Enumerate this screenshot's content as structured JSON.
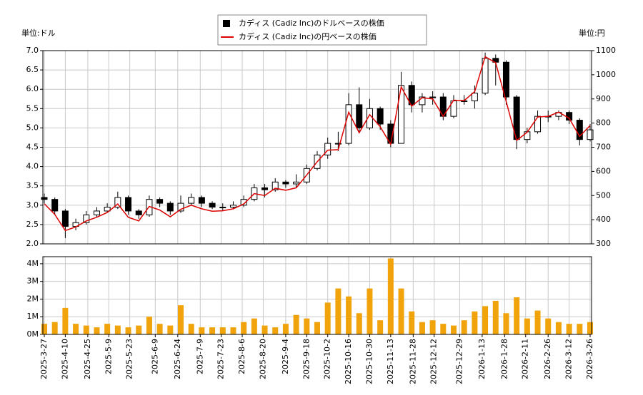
{
  "chart_data": [
    {
      "type": "candlestick",
      "y_unit": "単位:ドル",
      "y2_unit": "単位:円",
      "x": [
        "2025-03-27",
        "2025-04-03",
        "2025-04-10",
        "2025-04-17",
        "2025-04-24",
        "2025-05-01",
        "2025-05-08",
        "2025-05-15",
        "2025-05-22",
        "2025-05-29",
        "2025-06-05",
        "2025-06-12",
        "2025-06-19",
        "2025-06-26",
        "2025-07-03",
        "2025-07-10",
        "2025-07-17",
        "2025-07-24",
        "2025-07-31",
        "2025-08-07",
        "2025-08-14",
        "2025-08-21",
        "2025-08-28",
        "2025-09-04",
        "2025-09-11",
        "2025-09-18",
        "2025-09-25",
        "2025-10-02",
        "2025-10-09",
        "2025-10-16",
        "2025-10-23",
        "2025-10-30",
        "2025-11-06",
        "2025-11-13",
        "2025-11-20",
        "2025-11-27",
        "2025-12-04",
        "2025-12-11",
        "2025-12-18",
        "2025-12-25",
        "2026-01-01",
        "2026-01-08",
        "2026-01-15",
        "2026-01-22",
        "2026-01-29",
        "2026-02-05",
        "2026-02-12",
        "2026-02-19",
        "2026-02-26",
        "2026-03-05",
        "2026-03-12",
        "2026-03-19",
        "2026-03-26"
      ],
      "xlim": [
        "2025-03-27",
        "2026-03-26"
      ],
      "ylim": [
        2,
        7
      ],
      "yticks": [
        {
          "value": 2,
          "label": "2.0"
        },
        {
          "value": 2.5,
          "label": "2.5"
        },
        {
          "value": 3,
          "label": "3.0"
        },
        {
          "value": 3.5,
          "label": "3.5"
        },
        {
          "value": 4,
          "label": "4.0"
        },
        {
          "value": 4.5,
          "label": "4.5"
        },
        {
          "value": 5,
          "label": "5.0"
        },
        {
          "value": 5.5,
          "label": "5.5"
        },
        {
          "value": 6,
          "label": "6.0"
        },
        {
          "value": 6.5,
          "label": "6.5"
        },
        {
          "value": 7,
          "label": "7.0"
        }
      ],
      "y2lim": [
        300,
        1100
      ],
      "y2ticks": [
        300,
        400,
        500,
        600,
        700,
        800,
        900,
        1000,
        1100
      ],
      "grid": true,
      "legend": "top",
      "series": [
        {
          "name": "カディス (Cadiz Inc)のドルベースの株価",
          "color": "#000000",
          "open": [
            3.2,
            3.15,
            2.85,
            2.45,
            2.55,
            2.75,
            2.85,
            2.95,
            3.2,
            2.85,
            2.75,
            3.15,
            3.05,
            2.85,
            3.05,
            3.2,
            3.05,
            2.95,
            2.95,
            3.0,
            3.15,
            3.45,
            3.4,
            3.6,
            3.55,
            3.6,
            3.95,
            4.3,
            4.6,
            4.6,
            5.6,
            5.0,
            5.5,
            5.1,
            4.6,
            6.1,
            5.6,
            5.8,
            5.8,
            5.3,
            5.7,
            5.7,
            5.9,
            6.8,
            6.7,
            5.8,
            4.7,
            4.9,
            5.3,
            5.3,
            5.4,
            5.2,
            4.7
          ],
          "high": [
            3.3,
            3.2,
            2.9,
            2.65,
            2.85,
            2.95,
            3.05,
            3.35,
            3.25,
            2.9,
            3.25,
            3.2,
            3.1,
            3.25,
            3.3,
            3.25,
            3.1,
            3.05,
            3.1,
            3.25,
            3.55,
            3.55,
            3.7,
            3.65,
            3.8,
            4.05,
            4.4,
            4.75,
            4.9,
            5.9,
            6.05,
            5.75,
            5.55,
            5.2,
            6.45,
            6.2,
            5.9,
            5.95,
            5.9,
            5.85,
            5.85,
            6.1,
            6.95,
            6.9,
            6.75,
            5.85,
            5.0,
            5.45,
            5.45,
            5.45,
            5.45,
            5.25,
            5.1
          ],
          "low": [
            3.05,
            2.75,
            2.15,
            2.35,
            2.5,
            2.7,
            2.8,
            2.9,
            2.75,
            2.65,
            2.7,
            2.95,
            2.75,
            2.8,
            3.0,
            2.95,
            2.9,
            2.85,
            2.9,
            2.95,
            3.1,
            3.2,
            3.35,
            3.45,
            3.45,
            3.55,
            3.9,
            4.2,
            4.4,
            4.55,
            4.9,
            4.95,
            4.95,
            4.5,
            4.6,
            5.4,
            5.4,
            5.6,
            5.2,
            5.25,
            5.6,
            5.5,
            5.85,
            6.1,
            5.6,
            4.45,
            4.6,
            4.85,
            5.15,
            5.2,
            5.1,
            4.55,
            4.65
          ],
          "close": [
            3.15,
            2.85,
            2.45,
            2.55,
            2.75,
            2.85,
            2.95,
            3.2,
            2.85,
            2.75,
            3.15,
            3.05,
            2.85,
            3.05,
            3.2,
            3.05,
            2.95,
            2.95,
            3.0,
            3.15,
            3.45,
            3.4,
            3.6,
            3.55,
            3.6,
            3.95,
            4.3,
            4.6,
            4.6,
            5.6,
            5.0,
            5.5,
            5.1,
            4.6,
            6.1,
            5.6,
            5.8,
            5.8,
            5.3,
            5.7,
            5.7,
            5.9,
            6.8,
            6.7,
            5.8,
            4.7,
            4.9,
            5.3,
            5.3,
            5.4,
            5.2,
            4.7,
            4.95
          ]
        },
        {
          "name": "カディス (Cadiz Inc)の円ベースの株価",
          "color": "#dd0000",
          "axis": "y2",
          "values": [
            466,
            422,
            355,
            370,
            395,
            410,
            430,
            465,
            410,
            395,
            455,
            440,
            412,
            443,
            460,
            445,
            435,
            437,
            445,
            465,
            508,
            500,
            530,
            522,
            532,
            585,
            640,
            688,
            690,
            845,
            760,
            835,
            785,
            712,
            950,
            870,
            905,
            900,
            828,
            895,
            893,
            930,
            1075,
            1050,
            890,
            728,
            762,
            825,
            828,
            845,
            820,
            745,
            790
          ]
        }
      ]
    },
    {
      "type": "bar",
      "x": [
        "2025-03-27",
        "2025-04-03",
        "2025-04-10",
        "2025-04-17",
        "2025-04-24",
        "2025-05-01",
        "2025-05-08",
        "2025-05-15",
        "2025-05-22",
        "2025-05-29",
        "2025-06-05",
        "2025-06-12",
        "2025-06-19",
        "2025-06-26",
        "2025-07-03",
        "2025-07-10",
        "2025-07-17",
        "2025-07-24",
        "2025-07-31",
        "2025-08-07",
        "2025-08-14",
        "2025-08-21",
        "2025-08-28",
        "2025-09-04",
        "2025-09-11",
        "2025-09-18",
        "2025-09-25",
        "2025-10-02",
        "2025-10-09",
        "2025-10-16",
        "2025-10-23",
        "2025-10-30",
        "2025-11-06",
        "2025-11-13",
        "2025-11-20",
        "2025-11-27",
        "2025-12-04",
        "2025-12-11",
        "2025-12-18",
        "2025-12-25",
        "2026-01-01",
        "2026-01-08",
        "2026-01-15",
        "2026-01-22",
        "2026-01-29",
        "2026-02-05",
        "2026-02-12",
        "2026-02-19",
        "2026-02-26",
        "2026-03-05",
        "2026-03-12",
        "2026-03-19",
        "2026-03-26"
      ],
      "values": [
        600000,
        700000,
        1500000,
        600000,
        500000,
        400000,
        600000,
        500000,
        400000,
        500000,
        1000000,
        600000,
        500000,
        1650000,
        600000,
        400000,
        400000,
        400000,
        400000,
        700000,
        900000,
        500000,
        400000,
        600000,
        1100000,
        900000,
        700000,
        1800000,
        2600000,
        2150000,
        1200000,
        2600000,
        800000,
        4300000,
        2600000,
        1300000,
        700000,
        800000,
        600000,
        500000,
        800000,
        1300000,
        1600000,
        1900000,
        1200000,
        2100000,
        900000,
        1350000,
        900000,
        700000,
        600000,
        600000,
        700000
      ],
      "color": "#f0a30a",
      "xlim": [
        "2025-03-27",
        "2026-03-26"
      ],
      "xticks": [
        {
          "value": "2025-03-27",
          "label": "2025-3-27"
        },
        {
          "value": "2025-04-10",
          "label": "2025-4-10"
        },
        {
          "value": "2025-04-25",
          "label": "2025-4-25"
        },
        {
          "value": "2025-05-09",
          "label": "2025-5-9"
        },
        {
          "value": "2025-05-23",
          "label": "2025-5-23"
        },
        {
          "value": "2025-06-09",
          "label": "2025-6-9"
        },
        {
          "value": "2025-06-24",
          "label": "2025-6-24"
        },
        {
          "value": "2025-07-09",
          "label": "2025-7-9"
        },
        {
          "value": "2025-07-23",
          "label": "2025-7-23"
        },
        {
          "value": "2025-08-06",
          "label": "2025-8-6"
        },
        {
          "value": "2025-08-20",
          "label": "2025-8-20"
        },
        {
          "value": "2025-09-04",
          "label": "2025-9-4"
        },
        {
          "value": "2025-09-18",
          "label": "2025-9-18"
        },
        {
          "value": "2025-10-02",
          "label": "2025-10-2"
        },
        {
          "value": "2025-10-16",
          "label": "2025-10-16"
        },
        {
          "value": "2025-10-30",
          "label": "2025-10-30"
        },
        {
          "value": "2025-11-13",
          "label": "2025-11-13"
        },
        {
          "value": "2025-11-28",
          "label": "2025-11-28"
        },
        {
          "value": "2025-12-12",
          "label": "2025-12-12"
        },
        {
          "value": "2025-12-29",
          "label": "2025-12-29"
        },
        {
          "value": "2026-01-13",
          "label": "2026-1-13"
        },
        {
          "value": "2026-01-28",
          "label": "2026-1-28"
        },
        {
          "value": "2026-02-11",
          "label": "2026-2-11"
        },
        {
          "value": "2026-02-26",
          "label": "2026-2-26"
        },
        {
          "value": "2026-03-12",
          "label": "2026-3-12"
        },
        {
          "value": "2026-03-26",
          "label": "2026-3-26"
        }
      ],
      "ylim": [
        0,
        4400000
      ],
      "yticks": [
        {
          "value": 0,
          "label": "0M"
        },
        {
          "value": 1000000,
          "label": "1M"
        },
        {
          "value": 2000000,
          "label": "2M"
        },
        {
          "value": 3000000,
          "label": "3M"
        },
        {
          "value": 4000000,
          "label": "4M"
        }
      ],
      "grid": true
    }
  ]
}
